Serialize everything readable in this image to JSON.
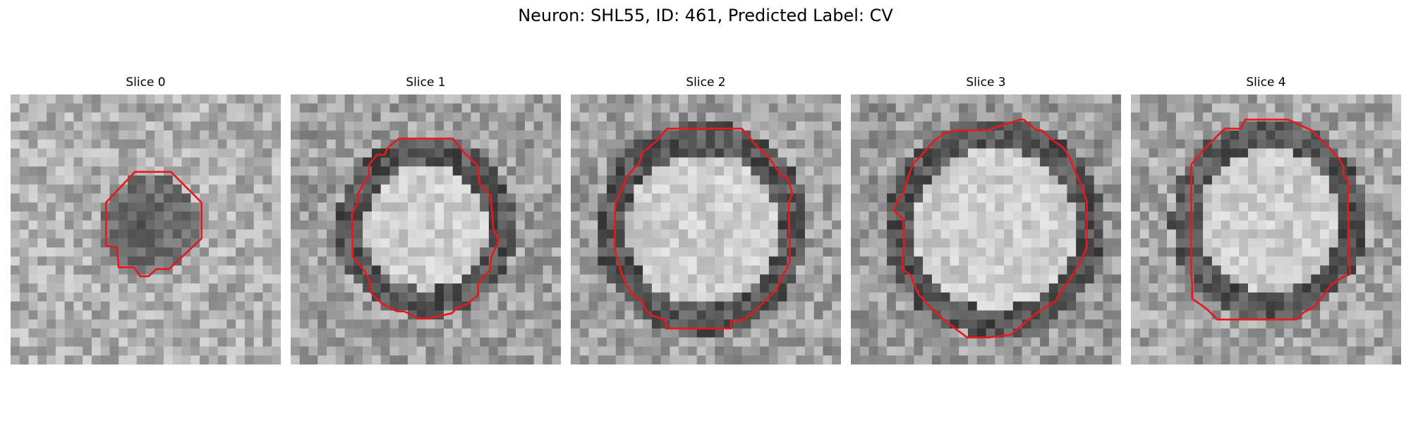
{
  "figure": {
    "title": "Neuron: SHL55, ID: 461, Predicted Label: CV"
  },
  "colors": {
    "background": "#ffffff",
    "contour": "#e8181c",
    "grayscale_low": "#1a1a1a",
    "grayscale_high": "#f5f5f5"
  },
  "slices": [
    {
      "title": "Slice 0",
      "description": "small dark blob with octagonal red contour"
    },
    {
      "title": "Slice 1",
      "description": "bright vesicle with dark ring and red contour"
    },
    {
      "title": "Slice 2",
      "description": "bright vesicle with dark ring and red contour"
    },
    {
      "title": "Slice 3",
      "description": "bright vesicle with dark ring and red contour"
    },
    {
      "title": "Slice 4",
      "description": "bright vesicle with dark ring and red contour"
    }
  ]
}
